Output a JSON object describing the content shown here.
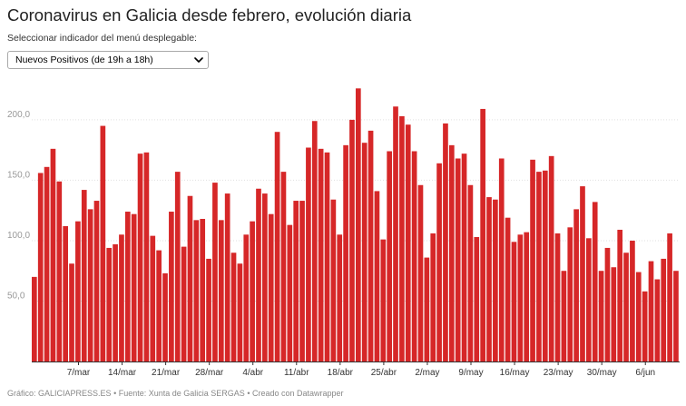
{
  "title": "Coronavirus en Galicia desde febrero, evolución diaria",
  "subtitle": "Seleccionar indicador del menú desplegable:",
  "dropdown": {
    "selected": "Nuevos Positivos (de 19h a 18h)"
  },
  "footer": {
    "prefix": "Gráfico: GALICIAPRESS.ES",
    "source": "Fuente: Xunta de Galicia SERGAS",
    "credit": "Creado con Datawrapper"
  },
  "colors": {
    "bar": "#d62728",
    "grid": "#e0e0e0",
    "tick": "#999999"
  },
  "chart_data": {
    "type": "bar",
    "title": "Coronavirus en Galicia desde febrero, evolución diaria",
    "series_name": "Nuevos Positivos (de 19h a 18h)",
    "ylim": [
      0,
      230
    ],
    "yticks": [
      {
        "value": 50,
        "label": "50,0"
      },
      {
        "value": 100,
        "label": "100,0"
      },
      {
        "value": 150,
        "label": "150,0"
      },
      {
        "value": 200,
        "label": "200,0"
      }
    ],
    "xticks": [
      {
        "index": 7,
        "label": "7/mar"
      },
      {
        "index": 14,
        "label": "14/mar"
      },
      {
        "index": 21,
        "label": "21/mar"
      },
      {
        "index": 28,
        "label": "28/mar"
      },
      {
        "index": 35,
        "label": "4/abr"
      },
      {
        "index": 42,
        "label": "11/abr"
      },
      {
        "index": 49,
        "label": "18/abr"
      },
      {
        "index": 56,
        "label": "25/abr"
      },
      {
        "index": 63,
        "label": "2/may"
      },
      {
        "index": 70,
        "label": "9/may"
      },
      {
        "index": 77,
        "label": "16/may"
      },
      {
        "index": 84,
        "label": "23/may"
      },
      {
        "index": 91,
        "label": "30/may"
      },
      {
        "index": 98,
        "label": "6/jun"
      }
    ],
    "values": [
      70,
      156,
      161,
      176,
      149,
      112,
      81,
      116,
      142,
      126,
      133,
      195,
      94,
      97,
      105,
      124,
      122,
      172,
      173,
      104,
      92,
      73,
      124,
      157,
      95,
      137,
      117,
      118,
      85,
      148,
      117,
      139,
      90,
      81,
      105,
      116,
      143,
      139,
      122,
      190,
      157,
      113,
      133,
      133,
      177,
      199,
      176,
      173,
      134,
      105,
      179,
      200,
      226,
      181,
      191,
      141,
      101,
      174,
      211,
      203,
      196,
      174,
      146,
      86,
      106,
      164,
      197,
      179,
      168,
      172,
      146,
      103,
      209,
      136,
      134,
      168,
      119,
      99,
      105,
      107,
      167,
      157,
      158,
      170,
      106,
      75,
      111,
      126,
      145,
      102,
      132,
      75,
      94,
      78,
      109,
      90,
      100,
      74,
      58,
      83,
      68,
      85,
      106,
      75
    ]
  }
}
